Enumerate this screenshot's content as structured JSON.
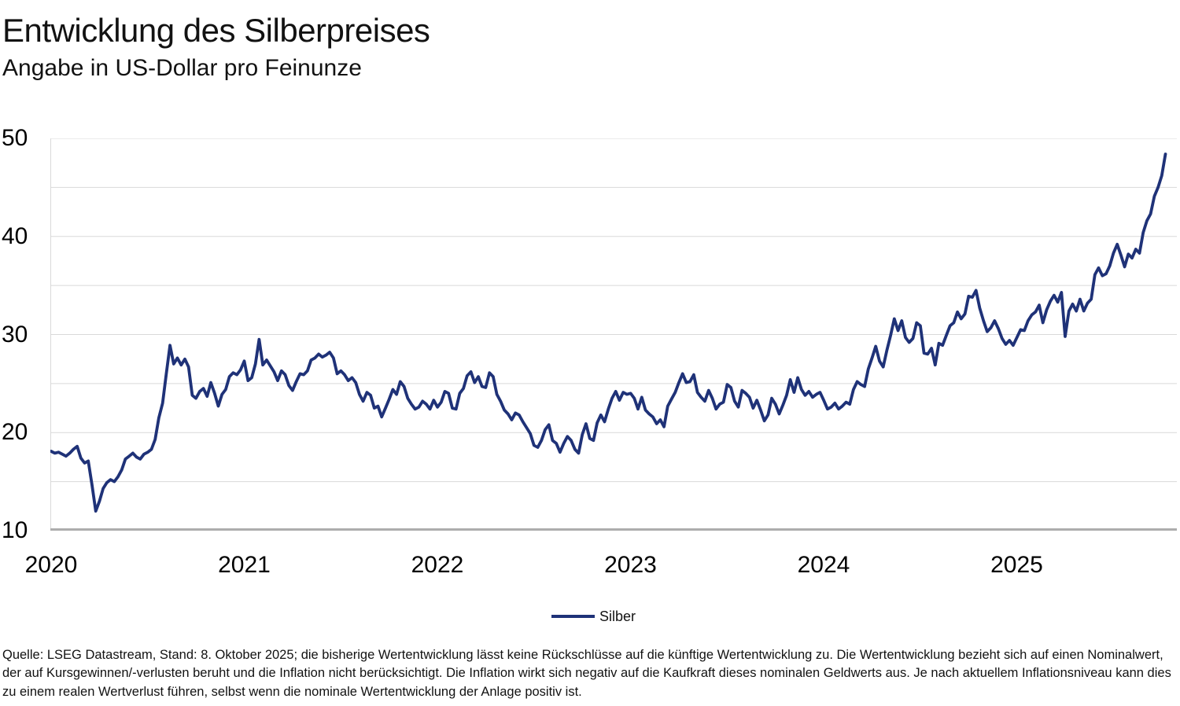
{
  "header": {
    "title": "Entwicklung des Silberpreises",
    "subtitle": "Angabe in US-Dollar pro Feinunze"
  },
  "legend": {
    "label": "Silber"
  },
  "footer": {
    "text": "Quelle: LSEG Datastream, Stand: 8. Oktober 2025; die bisherige Wertentwicklung lässt keine Rückschlüsse auf die künftige Wertentwicklung zu. Die Wertentwicklung bezieht sich auf einen Nominalwert, der auf Kursgewinnen/-verlusten beruht und die Inflation nicht berücksichtigt. Die Inflation wirkt sich negativ auf die Kaufkraft dieses nominalen Geldwerts aus. Je nach aktuellem Inflationsniveau kann dies zu einem realen Wertverlust führen, selbst wenn die nominale Wertentwicklung der Anlage positiv ist."
  },
  "colors": {
    "line": "#1F3278",
    "grid": "#D9D9D9",
    "axis": "#ADADAD",
    "text": "#000000"
  },
  "chart_data": {
    "type": "line",
    "title": "Entwicklung des Silberpreises",
    "xlabel": "",
    "ylabel": "US-Dollar pro Feinunze",
    "ylim": [
      10,
      50
    ],
    "y_ticks": [
      50,
      40,
      30,
      20,
      10
    ],
    "gridline_step": 5,
    "x_start": 2020.0,
    "x_end": 2025.77,
    "x_ticks": [
      {
        "label": "2020",
        "x": 2020
      },
      {
        "label": "2021",
        "x": 2021
      },
      {
        "label": "2022",
        "x": 2022
      },
      {
        "label": "2023",
        "x": 2023
      },
      {
        "label": "2024",
        "x": 2024
      },
      {
        "label": "2025",
        "x": 2025
      }
    ],
    "legend_position": "bottom-center",
    "grid": true,
    "series": [
      {
        "name": "Silber",
        "color": "#1F3278",
        "sampling": "weekly",
        "values": [
          18.1,
          17.9,
          18.0,
          17.8,
          17.6,
          17.9,
          18.3,
          18.6,
          17.4,
          16.9,
          17.1,
          14.7,
          12.0,
          13.0,
          14.3,
          14.9,
          15.2,
          15.0,
          15.5,
          16.2,
          17.3,
          17.6,
          17.9,
          17.5,
          17.3,
          17.8,
          18.0,
          18.3,
          19.3,
          21.5,
          23.0,
          26.0,
          28.9,
          27.0,
          27.6,
          26.9,
          27.5,
          26.7,
          23.8,
          23.5,
          24.2,
          24.5,
          23.7,
          25.1,
          24.0,
          22.7,
          23.9,
          24.4,
          25.7,
          26.1,
          25.9,
          26.4,
          27.3,
          25.3,
          25.6,
          27.0,
          29.5,
          26.9,
          27.4,
          26.8,
          26.2,
          25.3,
          26.3,
          25.9,
          24.8,
          24.3,
          25.2,
          26.0,
          25.9,
          26.3,
          27.4,
          27.6,
          28.0,
          27.7,
          27.9,
          28.2,
          27.6,
          26.0,
          26.3,
          25.9,
          25.3,
          25.6,
          25.1,
          23.9,
          23.2,
          24.1,
          23.8,
          22.5,
          22.7,
          21.6,
          22.5,
          23.4,
          24.4,
          23.9,
          25.2,
          24.7,
          23.5,
          22.9,
          22.4,
          22.6,
          23.2,
          22.9,
          22.4,
          23.3,
          22.6,
          23.1,
          24.2,
          24.0,
          22.5,
          22.4,
          24.0,
          24.5,
          25.8,
          26.2,
          25.1,
          25.7,
          24.7,
          24.6,
          26.1,
          25.7,
          23.9,
          23.2,
          22.3,
          21.9,
          21.3,
          22.0,
          21.8,
          21.1,
          20.5,
          19.9,
          18.7,
          18.5,
          19.2,
          20.3,
          20.8,
          19.2,
          18.9,
          18.0,
          18.9,
          19.6,
          19.2,
          18.3,
          17.9,
          19.8,
          20.9,
          19.4,
          19.2,
          21.0,
          21.8,
          21.1,
          22.4,
          23.5,
          24.2,
          23.3,
          24.1,
          23.9,
          24.0,
          23.5,
          22.4,
          23.6,
          22.3,
          21.9,
          21.6,
          20.9,
          21.3,
          20.6,
          22.7,
          23.4,
          24.1,
          25.1,
          26.0,
          25.1,
          25.2,
          25.9,
          24.1,
          23.6,
          23.2,
          24.3,
          23.5,
          22.4,
          22.9,
          23.1,
          24.9,
          24.6,
          23.2,
          22.6,
          24.3,
          24.0,
          23.6,
          22.5,
          23.3,
          22.3,
          21.2,
          21.8,
          23.5,
          22.9,
          21.9,
          22.8,
          23.8,
          25.4,
          24.1,
          25.6,
          24.4,
          23.8,
          24.2,
          23.6,
          23.9,
          24.1,
          23.3,
          22.4,
          22.6,
          23.0,
          22.4,
          22.7,
          23.1,
          22.9,
          24.4,
          25.2,
          24.9,
          24.7,
          26.5,
          27.6,
          28.8,
          27.3,
          26.7,
          28.4,
          29.9,
          31.6,
          30.4,
          31.4,
          29.7,
          29.2,
          29.6,
          31.2,
          30.9,
          28.1,
          28.0,
          28.6,
          26.9,
          29.1,
          28.9,
          29.9,
          30.9,
          31.2,
          32.3,
          31.6,
          32.1,
          33.9,
          33.8,
          34.5,
          32.7,
          31.4,
          30.3,
          30.7,
          31.4,
          30.6,
          29.6,
          29.0,
          29.4,
          28.9,
          29.7,
          30.5,
          30.4,
          31.4,
          32.0,
          32.3,
          33.0,
          31.2,
          32.5,
          33.4,
          34.0,
          33.3,
          34.3,
          29.8,
          32.4,
          33.1,
          32.4,
          33.6,
          32.4,
          33.2,
          33.6,
          36.1,
          36.8,
          36.0,
          36.2,
          37.0,
          38.3,
          39.2,
          38.1,
          36.9,
          38.2,
          37.8,
          38.7,
          38.3,
          40.4,
          41.6,
          42.3,
          44.1,
          45.0,
          46.2,
          48.4
        ]
      }
    ]
  }
}
